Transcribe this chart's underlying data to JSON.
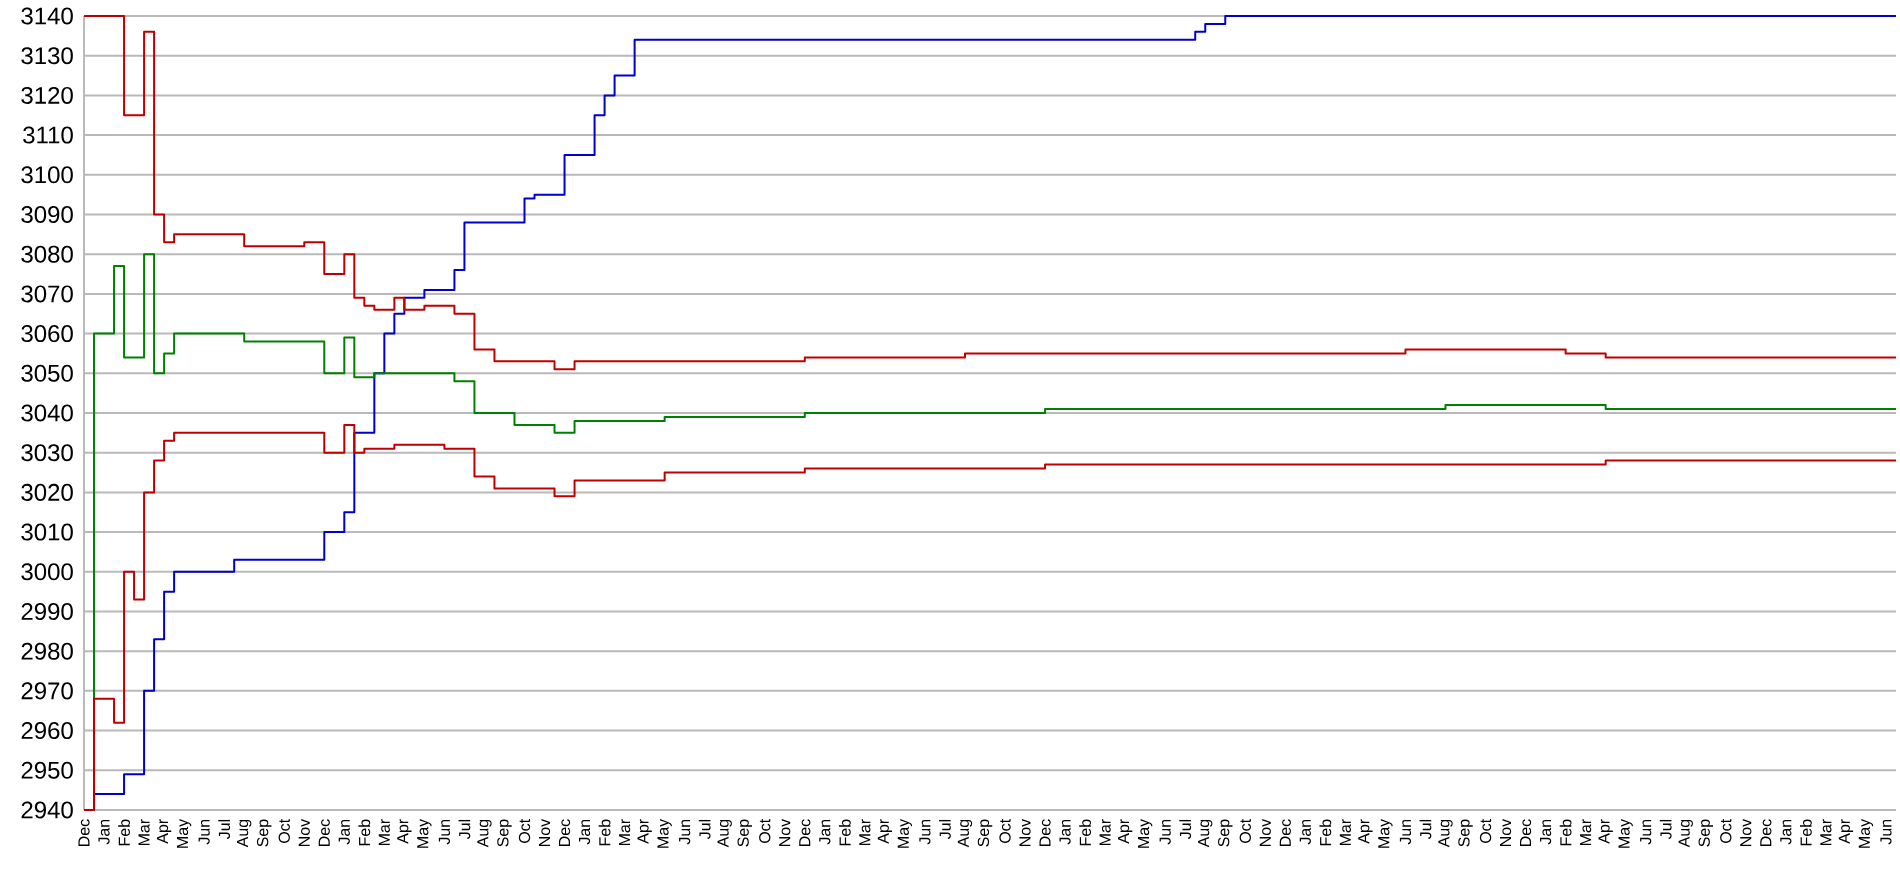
{
  "chart_data": {
    "type": "step",
    "ylim": [
      2940,
      3140
    ],
    "yticks": [
      2940,
      2950,
      2960,
      2970,
      2980,
      2990,
      3000,
      3010,
      3020,
      3030,
      3040,
      3050,
      3060,
      3070,
      3080,
      3090,
      3100,
      3110,
      3120,
      3130,
      3140
    ],
    "categories": [
      "Dec",
      null,
      "Jan",
      null,
      "Feb",
      null,
      "Mar",
      null,
      "Apr",
      null,
      "May",
      null,
      "Jun",
      null,
      "Jul",
      null,
      "Aug",
      null,
      "Sep",
      null,
      "Oct",
      null,
      "Nov",
      null,
      "Dec",
      null,
      "Jan",
      null,
      "Feb",
      null,
      "Mar",
      null,
      "Apr",
      null,
      "May",
      null,
      "Jun",
      null,
      "Jul",
      null,
      "Aug",
      null,
      "Sep",
      null,
      "Oct",
      null,
      "Nov",
      null,
      "Dec",
      null,
      "Jan",
      null,
      "Feb",
      null,
      "Mar",
      null,
      "Apr",
      null,
      "May",
      null,
      "Jun",
      null,
      "Jul",
      null,
      "Aug",
      null,
      "Sep",
      null,
      "Oct",
      null,
      "Nov",
      null,
      "Dec",
      null,
      "Jan",
      null,
      "Feb",
      null,
      "Mar",
      null,
      "Apr",
      null,
      "May",
      null,
      "Jun",
      null,
      "Jul",
      null,
      "Aug",
      null,
      "Sep",
      null,
      "Oct",
      null,
      "Nov",
      null,
      "Dec",
      null,
      "Jan",
      null,
      "Feb",
      null,
      "Mar",
      null,
      "Apr",
      null,
      "May",
      null,
      "Jun",
      null,
      "Jul",
      null,
      "Aug",
      null,
      "Sep",
      null,
      "Oct",
      null,
      "Nov",
      null,
      "Dec",
      null,
      "Jan",
      null,
      "Feb",
      null,
      "Mar",
      null,
      "Apr",
      null,
      "May",
      null,
      "Jun",
      null,
      "Jul",
      null,
      "Aug",
      null,
      "Sep",
      null,
      "Oct",
      null,
      "Nov",
      null,
      "Dec",
      null,
      "Jan",
      null,
      "Feb",
      null,
      "Mar",
      null,
      "Apr",
      null,
      "May",
      null,
      "Jun",
      null,
      "Jul",
      null,
      "Aug",
      null,
      "Sep",
      null,
      "Oct",
      null,
      "Nov",
      null,
      "Dec",
      null,
      "Jan",
      null,
      "Feb",
      null,
      "Mar",
      null,
      "Apr",
      null,
      "May",
      null,
      "Jun",
      null
    ],
    "grid": "y",
    "marker": "none",
    "line_style": "solid",
    "series": [
      {
        "color": "#0000cc",
        "values": [
          2940,
          2944,
          2944,
          2944,
          2949,
          2949,
          2970,
          2983,
          2995,
          3000,
          3000,
          3000,
          3000,
          3000,
          3000,
          3003,
          3003,
          3003,
          3003,
          3003,
          3003,
          3003,
          3003,
          3003,
          3010,
          3010,
          3015,
          3035,
          3035,
          3050,
          3060,
          3065,
          3069,
          3069,
          3071,
          3071,
          3071,
          3076,
          3088,
          3088,
          3088,
          3088,
          3088,
          3088,
          3094,
          3095,
          3095,
          3095,
          3105,
          3105,
          3105,
          3115,
          3120,
          3125,
          3125,
          3134,
          3134,
          3134,
          3134,
          3134,
          3134,
          3134,
          3134,
          3134,
          3134,
          3134,
          3134,
          3134,
          3134,
          3134,
          3134,
          3134,
          3134,
          3134,
          3134,
          3134,
          3134,
          3134,
          3134,
          3134,
          3134,
          3134,
          3134,
          3134,
          3134,
          3134,
          3134,
          3134,
          3134,
          3134,
          3134,
          3134,
          3134,
          3134,
          3134,
          3134,
          3134,
          3134,
          3134,
          3134,
          3134,
          3134,
          3134,
          3134,
          3134,
          3134,
          3134,
          3134,
          3134,
          3134,
          3134,
          3136,
          3138,
          3138,
          3140,
          3140,
          3140,
          3140,
          3140,
          3140,
          3140,
          3140,
          3140,
          3140,
          3140,
          3140,
          3140,
          3140,
          3140,
          3140,
          3140,
          3140,
          3140,
          3140,
          3140,
          3140,
          3140,
          3140,
          3140,
          3140,
          3140,
          3140,
          3140,
          3140,
          3140,
          3140,
          3140,
          3140,
          3140,
          3140,
          3140,
          3140,
          3140,
          3140,
          3140,
          3140,
          3140,
          3140,
          3140,
          3140,
          3140,
          3140,
          3140,
          3140,
          3140,
          3140,
          3140,
          3140,
          3140,
          3140,
          3140,
          3140,
          3140,
          3140,
          3140,
          3140,
          3140,
          3140,
          3140,
          3140,
          3140,
          3140
        ]
      },
      {
        "color": "#c00000",
        "values": [
          3140,
          3140,
          3140,
          3140,
          3115,
          3115,
          3136,
          3090,
          3083,
          3085,
          3085,
          3085,
          3085,
          3085,
          3085,
          3085,
          3082,
          3082,
          3082,
          3082,
          3082,
          3082,
          3083,
          3083,
          3075,
          3075,
          3080,
          3069,
          3067,
          3066,
          3066,
          3069,
          3066,
          3066,
          3067,
          3067,
          3067,
          3065,
          3065,
          3056,
          3056,
          3053,
          3053,
          3053,
          3053,
          3053,
          3053,
          3051,
          3051,
          3053,
          3053,
          3053,
          3053,
          3053,
          3053,
          3053,
          3053,
          3053,
          3053,
          3053,
          3053,
          3053,
          3053,
          3053,
          3053,
          3053,
          3053,
          3053,
          3053,
          3053,
          3053,
          3053,
          3054,
          3054,
          3054,
          3054,
          3054,
          3054,
          3054,
          3054,
          3054,
          3054,
          3054,
          3054,
          3054,
          3054,
          3054,
          3054,
          3055,
          3055,
          3055,
          3055,
          3055,
          3055,
          3055,
          3055,
          3055,
          3055,
          3055,
          3055,
          3055,
          3055,
          3055,
          3055,
          3055,
          3055,
          3055,
          3055,
          3055,
          3055,
          3055,
          3055,
          3055,
          3055,
          3055,
          3055,
          3055,
          3055,
          3055,
          3055,
          3055,
          3055,
          3055,
          3055,
          3055,
          3055,
          3055,
          3055,
          3055,
          3055,
          3055,
          3055,
          3056,
          3056,
          3056,
          3056,
          3056,
          3056,
          3056,
          3056,
          3056,
          3056,
          3056,
          3056,
          3056,
          3056,
          3056,
          3056,
          3055,
          3055,
          3055,
          3055,
          3054,
          3054,
          3054,
          3054,
          3054,
          3054,
          3054,
          3054,
          3054,
          3054,
          3054,
          3054,
          3054,
          3054,
          3054,
          3054,
          3054,
          3054,
          3054,
          3054,
          3054,
          3054,
          3054,
          3054,
          3054,
          3054,
          3054,
          3054,
          3054,
          3054
        ]
      },
      {
        "color": "#008000",
        "values": [
          2940,
          3060,
          3060,
          3077,
          3054,
          3054,
          3080,
          3050,
          3055,
          3060,
          3060,
          3060,
          3060,
          3060,
          3060,
          3060,
          3058,
          3058,
          3058,
          3058,
          3058,
          3058,
          3058,
          3058,
          3050,
          3050,
          3059,
          3049,
          3049,
          3050,
          3050,
          3050,
          3050,
          3050,
          3050,
          3050,
          3050,
          3048,
          3048,
          3040,
          3040,
          3040,
          3040,
          3037,
          3037,
          3037,
          3037,
          3035,
          3035,
          3038,
          3038,
          3038,
          3038,
          3038,
          3038,
          3038,
          3038,
          3038,
          3039,
          3039,
          3039,
          3039,
          3039,
          3039,
          3039,
          3039,
          3039,
          3039,
          3039,
          3039,
          3039,
          3039,
          3040,
          3040,
          3040,
          3040,
          3040,
          3040,
          3040,
          3040,
          3040,
          3040,
          3040,
          3040,
          3040,
          3040,
          3040,
          3040,
          3040,
          3040,
          3040,
          3040,
          3040,
          3040,
          3040,
          3040,
          3041,
          3041,
          3041,
          3041,
          3041,
          3041,
          3041,
          3041,
          3041,
          3041,
          3041,
          3041,
          3041,
          3041,
          3041,
          3041,
          3041,
          3041,
          3041,
          3041,
          3041,
          3041,
          3041,
          3041,
          3041,
          3041,
          3041,
          3041,
          3041,
          3041,
          3041,
          3041,
          3041,
          3041,
          3041,
          3041,
          3041,
          3041,
          3041,
          3041,
          3042,
          3042,
          3042,
          3042,
          3042,
          3042,
          3042,
          3042,
          3042,
          3042,
          3042,
          3042,
          3042,
          3042,
          3042,
          3042,
          3041,
          3041,
          3041,
          3041,
          3041,
          3041,
          3041,
          3041,
          3041,
          3041,
          3041,
          3041,
          3041,
          3041,
          3041,
          3041,
          3041,
          3041,
          3041,
          3041,
          3041,
          3041,
          3041,
          3041,
          3041,
          3041,
          3041,
          3041,
          3041,
          3041
        ]
      },
      {
        "color": "#c00000",
        "values": [
          2940,
          2968,
          2968,
          2962,
          3000,
          2993,
          3020,
          3028,
          3033,
          3035,
          3035,
          3035,
          3035,
          3035,
          3035,
          3035,
          3035,
          3035,
          3035,
          3035,
          3035,
          3035,
          3035,
          3035,
          3030,
          3030,
          3037,
          3030,
          3031,
          3031,
          3031,
          3032,
          3032,
          3032,
          3032,
          3032,
          3031,
          3031,
          3031,
          3024,
          3024,
          3021,
          3021,
          3021,
          3021,
          3021,
          3021,
          3019,
          3019,
          3023,
          3023,
          3023,
          3023,
          3023,
          3023,
          3023,
          3023,
          3023,
          3025,
          3025,
          3025,
          3025,
          3025,
          3025,
          3025,
          3025,
          3025,
          3025,
          3025,
          3025,
          3025,
          3025,
          3026,
          3026,
          3026,
          3026,
          3026,
          3026,
          3026,
          3026,
          3026,
          3026,
          3026,
          3026,
          3026,
          3026,
          3026,
          3026,
          3026,
          3026,
          3026,
          3026,
          3026,
          3026,
          3026,
          3026,
          3027,
          3027,
          3027,
          3027,
          3027,
          3027,
          3027,
          3027,
          3027,
          3027,
          3027,
          3027,
          3027,
          3027,
          3027,
          3027,
          3027,
          3027,
          3027,
          3027,
          3027,
          3027,
          3027,
          3027,
          3027,
          3027,
          3027,
          3027,
          3027,
          3027,
          3027,
          3027,
          3027,
          3027,
          3027,
          3027,
          3027,
          3027,
          3027,
          3027,
          3027,
          3027,
          3027,
          3027,
          3027,
          3027,
          3027,
          3027,
          3027,
          3027,
          3027,
          3027,
          3027,
          3027,
          3027,
          3027,
          3028,
          3028,
          3028,
          3028,
          3028,
          3028,
          3028,
          3028,
          3028,
          3028,
          3028,
          3028,
          3028,
          3028,
          3028,
          3028,
          3028,
          3028,
          3028,
          3028,
          3028,
          3028,
          3028,
          3028,
          3028,
          3028,
          3028,
          3028,
          3028,
          3028
        ]
      }
    ]
  }
}
